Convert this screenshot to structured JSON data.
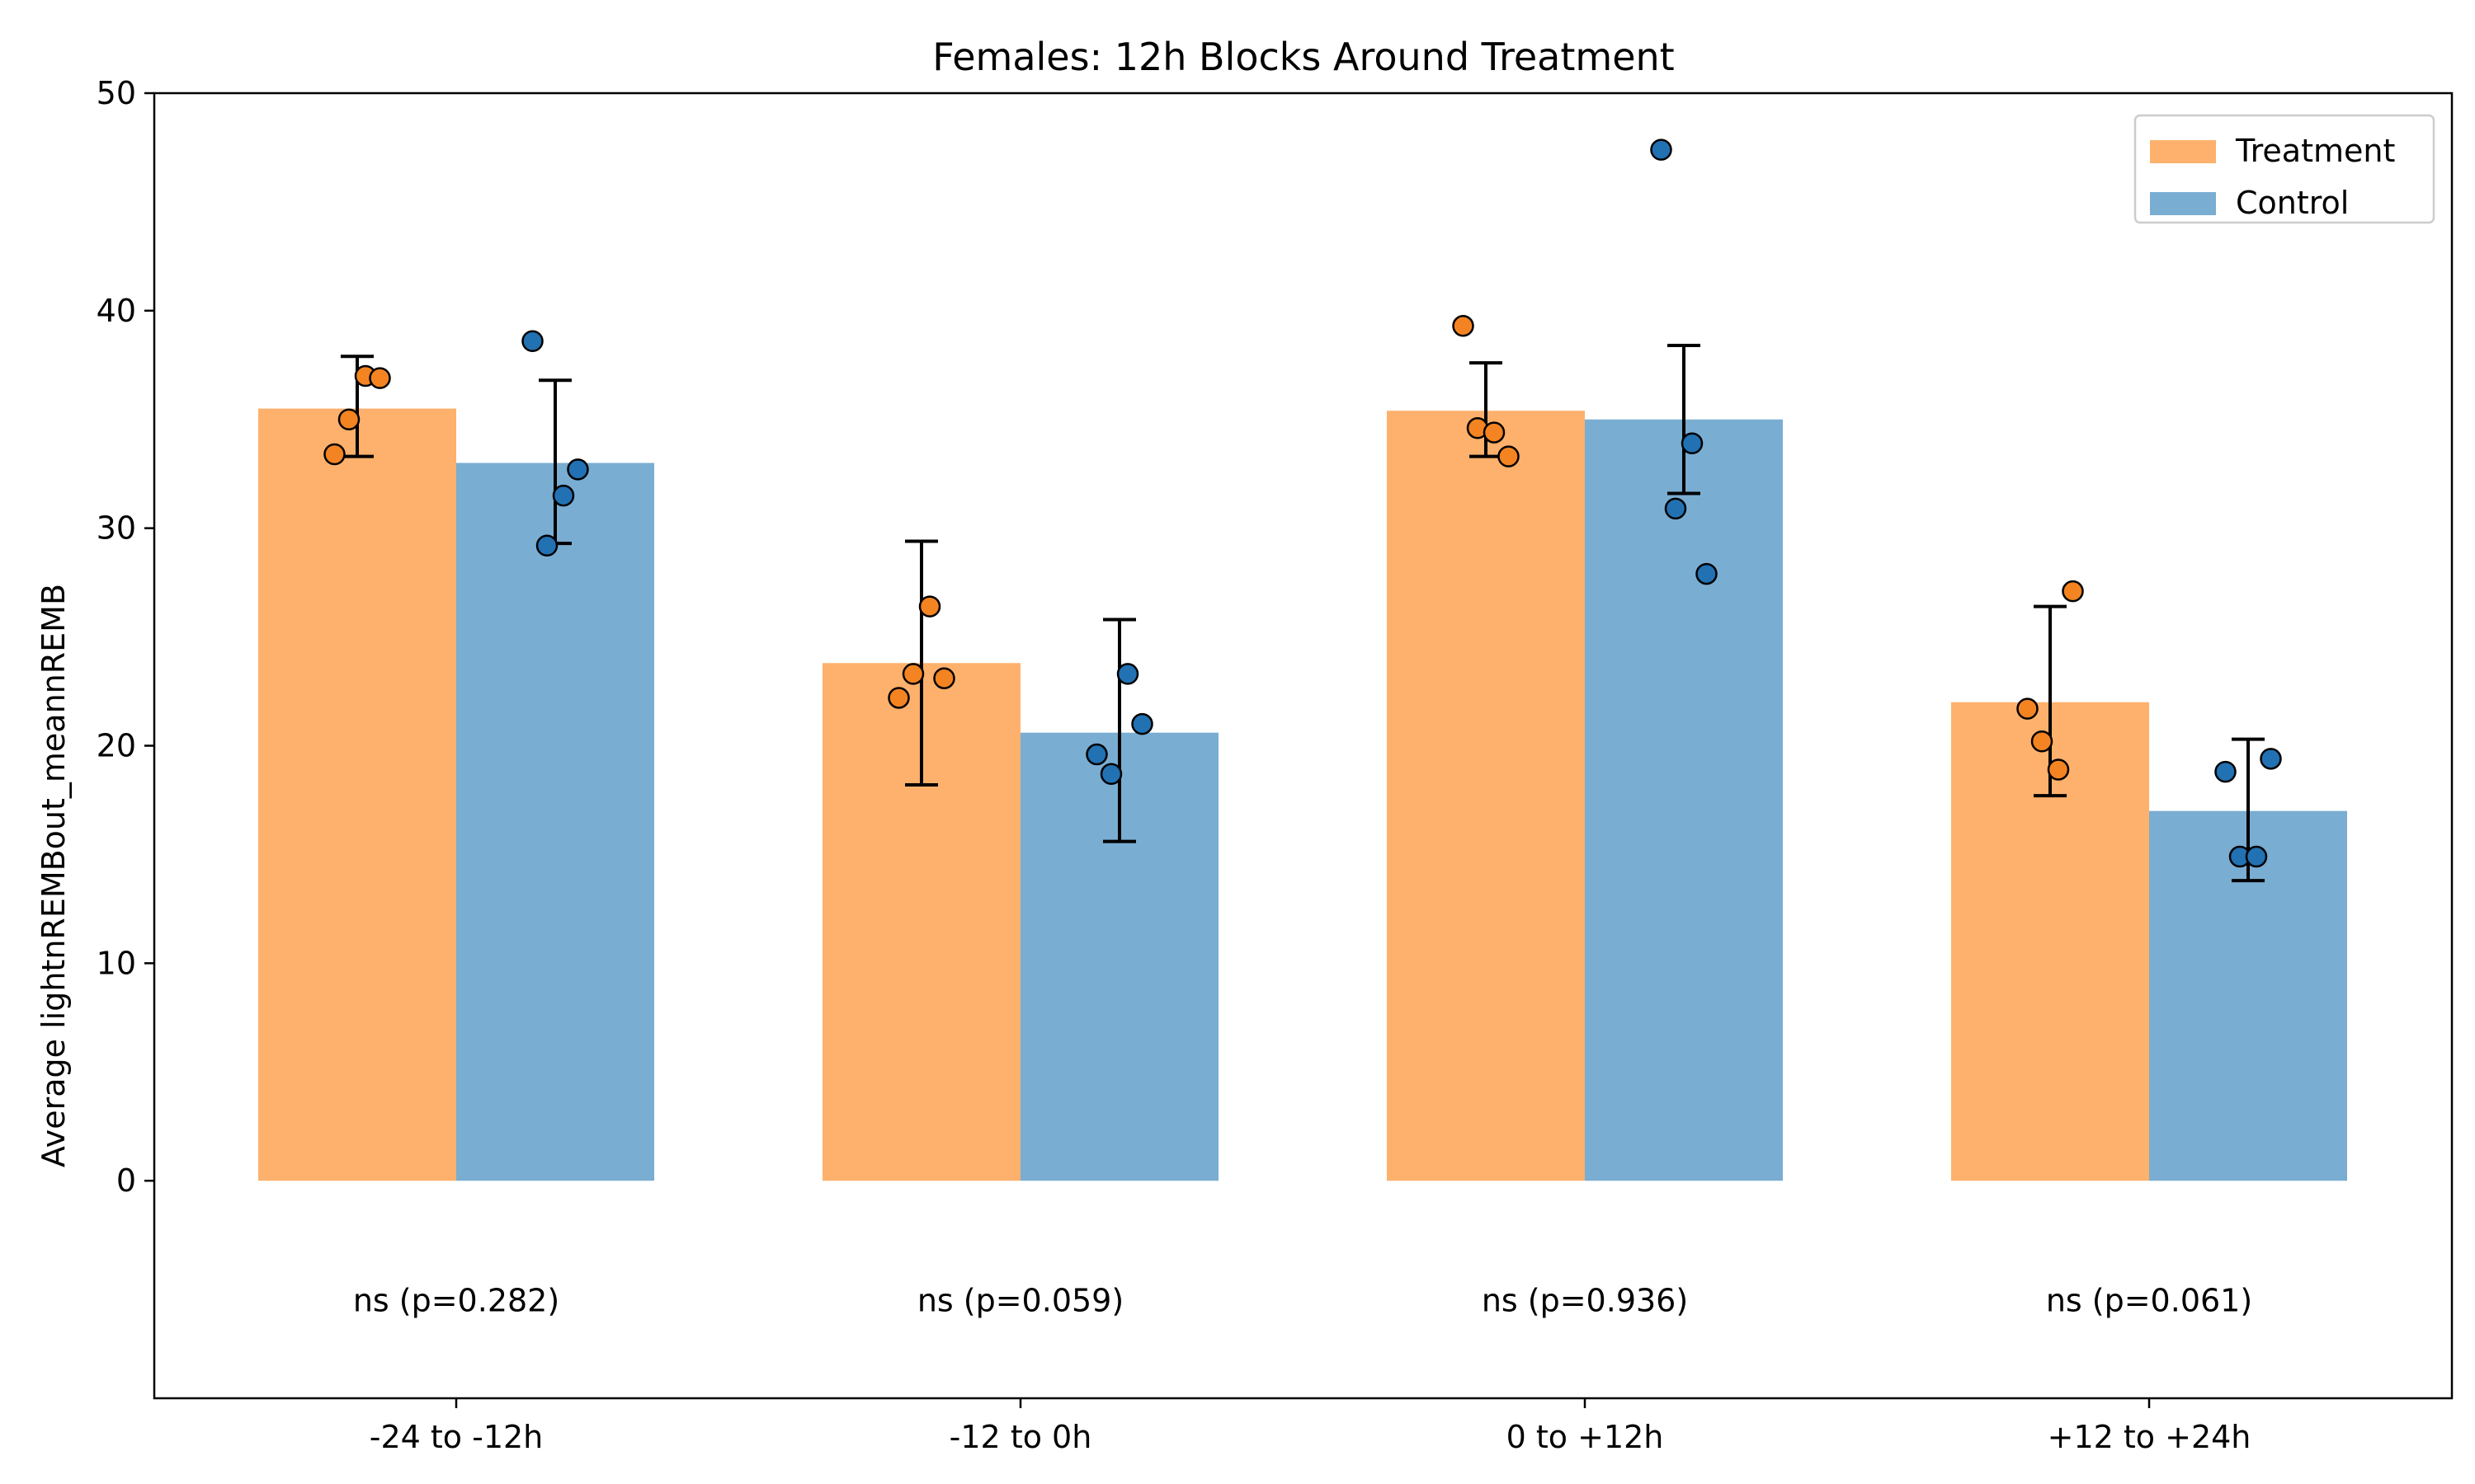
{
  "chart_data": {
    "type": "bar",
    "title": "Females: 12h Blocks Around Treatment",
    "xlabel": "",
    "ylabel": "Average lightnREMBout_meannREMB",
    "ylim": [
      -10,
      50
    ],
    "yticks": [
      0,
      10,
      20,
      30,
      40,
      50
    ],
    "categories": [
      "-24 to -12h",
      "-12 to 0h",
      "0 to +12h",
      "+12 to +24h"
    ],
    "legend_position": "top-right",
    "grid": false,
    "series": [
      {
        "name": "Treatment",
        "color": "#fdb16c",
        "point_color": "#f38421",
        "values": [
          35.5,
          23.8,
          35.4,
          22.0
        ],
        "error": [
          [
            33.3,
            37.9
          ],
          [
            18.2,
            29.4
          ],
          [
            33.3,
            37.6
          ],
          [
            17.7,
            26.4
          ]
        ],
        "points": [
          [
            33.4,
            35.0,
            37.0,
            36.9
          ],
          [
            22.2,
            23.3,
            26.4,
            23.1
          ],
          [
            39.3,
            34.6,
            34.4,
            33.3
          ],
          [
            21.7,
            20.2,
            18.9,
            27.1
          ]
        ]
      },
      {
        "name": "Control",
        "color": "#7aadd2",
        "point_color": "#2271b3",
        "values": [
          33.0,
          20.6,
          35.0,
          17.0
        ],
        "error": [
          [
            29.3,
            36.8
          ],
          [
            15.6,
            25.8
          ],
          [
            31.6,
            38.4
          ],
          [
            13.8,
            20.3
          ]
        ],
        "points": [
          [
            38.6,
            29.2,
            31.5,
            32.7
          ],
          [
            19.6,
            18.7,
            23.3,
            21.0
          ],
          [
            47.4,
            30.9,
            33.9,
            27.9
          ],
          [
            18.8,
            14.9,
            14.9,
            19.4
          ]
        ]
      }
    ],
    "annotations": [
      "ns (p=0.282)",
      "ns (p=0.059)",
      "ns (p=0.936)",
      "ns (p=0.061)"
    ]
  }
}
